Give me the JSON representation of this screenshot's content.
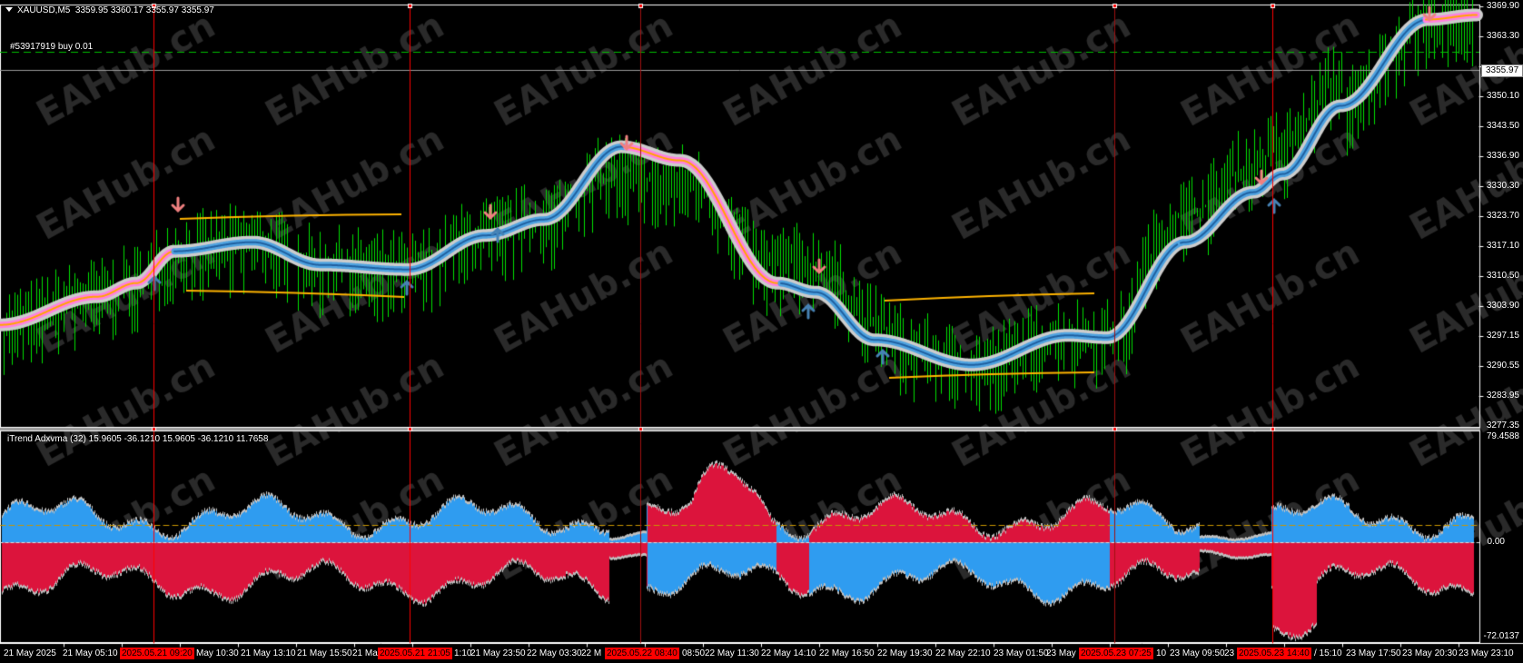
{
  "header": {
    "symbol": "XAUUSD,M5",
    "ohlc": "3359.95 3360.17 3355.97 3355.97",
    "menu_icon": "triangle-down-icon"
  },
  "order_label": "#53917919 buy 0.01",
  "current_price": "3355.97",
  "price_axis": [
    "3369.90",
    "3363.30",
    "3350.10",
    "3343.50",
    "3336.90",
    "3330.30",
    "3323.70",
    "3317.10",
    "3310.50",
    "3303.90",
    "3297.15",
    "3290.55",
    "3283.95",
    "3277.35"
  ],
  "indicator": {
    "label": "iTrend Adxvma (32) 15.9605 -36.1210 15.9605 -36.1210 11.7658",
    "axis": [
      "79.4588",
      "0.00",
      "-72.0137"
    ]
  },
  "time_axis": [
    "21 May 2025",
    "21 May 05:10",
    "May 10:30",
    "21 May 13:10",
    "21 May 15:50",
    "21 Ma",
    "1:10",
    "21 May 23:50",
    "22 May 03:30",
    "22 M",
    "08:50",
    "22 May 11:30",
    "22 May 14:10",
    "22 May 16:50",
    "22 May 19:30",
    "22 May 22:10",
    "23 May 01:50",
    "23 May",
    "10",
    "23 May 09:50",
    "23",
    "/ 15:10",
    "23 May 17:50",
    "23 May 20:30",
    "23 May 23:10"
  ],
  "marked_times": [
    "2025.05.21 09:20",
    "2025.05.21 21:05",
    "2025.05.22 08:40",
    "2025.05.23 07:25",
    "2025.05.23 14:40"
  ],
  "watermark": "EAHub.cn",
  "colors": {
    "background": "#000000",
    "candles": "#00e000",
    "ma_up": "#4fa3e0",
    "ma_down": "#ff80e0",
    "ma_core_down": "#ffa500",
    "channel": "#ffb400",
    "marker_line": "#ff0000",
    "histogram_positive": "#2f9cf0",
    "histogram_negative": "#dc143c",
    "order_line": "#00c000",
    "arrow_up": "#4682b4",
    "arrow_down": "#f08080"
  }
}
